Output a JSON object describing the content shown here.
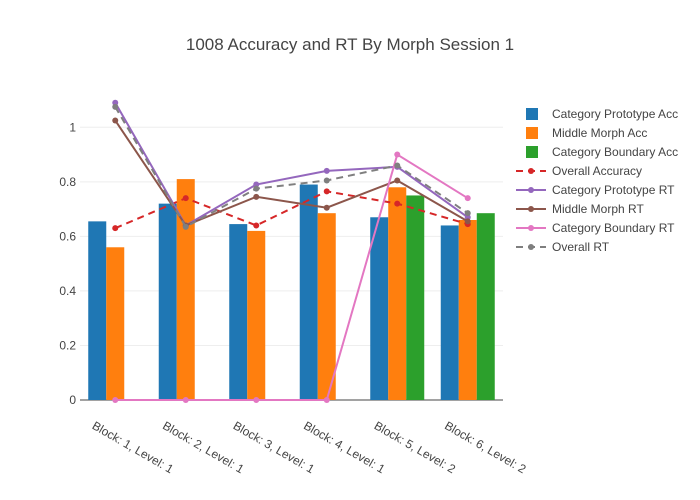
{
  "chart_data": {
    "type": "bar",
    "title": "1008 Accuracy and RT By Morph Session 1",
    "xlabel": "",
    "ylabel": "",
    "ylim": [
      0,
      1.1
    ],
    "yticks": [
      0,
      0.2,
      0.4,
      0.6,
      0.8,
      1
    ],
    "grid": true,
    "legend_position": "right",
    "categories": [
      "Block: 1, Level: 1",
      "Block: 2, Level: 1",
      "Block: 3, Level: 1",
      "Block: 4, Level: 1",
      "Block: 5, Level: 2",
      "Block: 6, Level: 2"
    ],
    "bar_series": [
      {
        "name": "Category Prototype Acc",
        "color": "#1f77b4",
        "values": [
          0.655,
          0.72,
          0.645,
          0.79,
          0.67,
          0.64
        ]
      },
      {
        "name": "Middle Morph Acc",
        "color": "#ff7f0e",
        "values": [
          0.56,
          0.81,
          0.62,
          0.685,
          0.78,
          0.66
        ]
      },
      {
        "name": "Category Boundary Acc",
        "color": "#2ca02c",
        "values": [
          null,
          null,
          null,
          null,
          0.75,
          0.685
        ]
      }
    ],
    "line_series": [
      {
        "name": "Overall Accuracy",
        "color": "#d62728",
        "dash": true,
        "values": [
          0.63,
          0.74,
          0.64,
          0.765,
          0.72,
          0.645
        ]
      },
      {
        "name": "Category Prototype RT",
        "color": "#9467bd",
        "dash": false,
        "values": [
          1.09,
          0.64,
          0.79,
          0.84,
          0.855,
          0.67
        ]
      },
      {
        "name": "Middle Morph RT",
        "color": "#8c564b",
        "dash": false,
        "values": [
          1.025,
          0.64,
          0.745,
          0.705,
          0.805,
          0.655
        ]
      },
      {
        "name": "Category Boundary RT",
        "color": "#e377c2",
        "dash": false,
        "values": [
          0,
          0,
          0,
          0,
          0.9,
          0.74
        ]
      },
      {
        "name": "Overall RT",
        "color": "#7f7f7f",
        "dash": true,
        "values": [
          1.075,
          0.635,
          0.775,
          0.805,
          0.86,
          0.685
        ]
      }
    ]
  }
}
